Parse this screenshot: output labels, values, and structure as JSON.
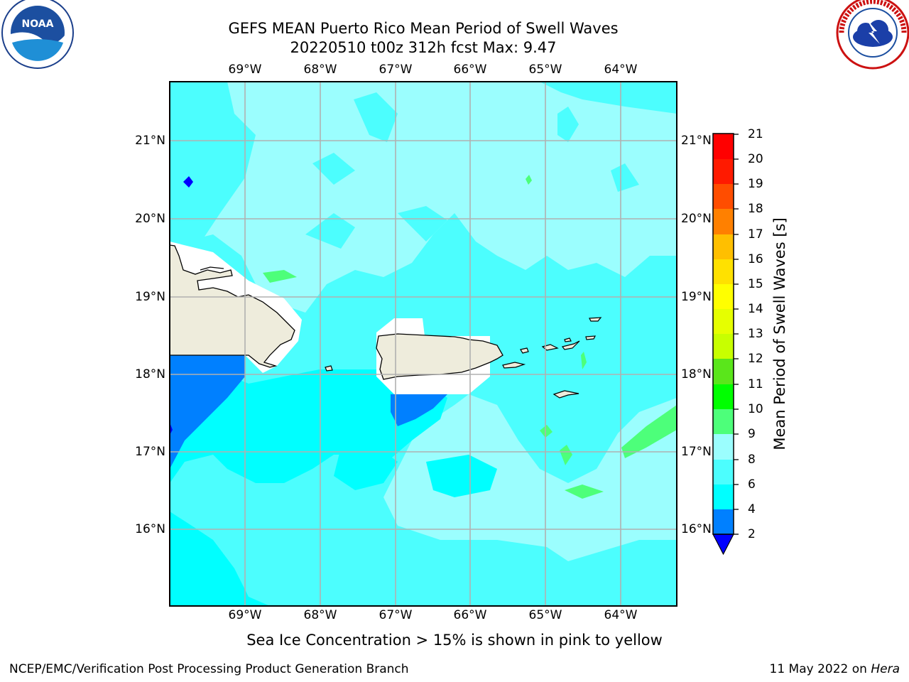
{
  "title": {
    "line1": "GEFS MEAN Puerto Rico Mean Period of Swell Waves",
    "line2": "20220510 t00z 312h fcst   Max: 9.47"
  },
  "logos": {
    "left": "noaa-logo",
    "right": "national-weather-service-logo",
    "left_text": "NOAA",
    "right_text": "NATIONAL WEATHER SERVICE"
  },
  "map": {
    "lon_labels": [
      "69°W",
      "68°W",
      "67°W",
      "66°W",
      "65°W",
      "64°W"
    ],
    "lat_labels": [
      "21°N",
      "20°N",
      "19°N",
      "18°N",
      "17°N",
      "16°N"
    ],
    "lon_values": [
      -69,
      -68,
      -67,
      -66,
      -65,
      -64
    ],
    "lat_values": [
      21,
      20,
      19,
      18,
      17,
      16
    ],
    "extent": {
      "lon": [
        -70,
        -63.25
      ],
      "lat": [
        15,
        21.75
      ]
    },
    "grid": true,
    "land_color": "#eeecdc",
    "masked_color": "#ffffff",
    "coastline_color": "#000000",
    "regions": [
      {
        "label": "Hispaniola (east)",
        "fill": "land"
      },
      {
        "label": "Puerto Rico",
        "fill": "land"
      },
      {
        "label": "Virgin Islands",
        "fill": "land"
      }
    ]
  },
  "colorbar": {
    "title": "Mean Period of Swell Waves [s]",
    "ticks": [
      "21",
      "20",
      "19",
      "18",
      "17",
      "16",
      "15",
      "14",
      "13",
      "12",
      "11",
      "10",
      "9",
      "8",
      "6",
      "4",
      "2"
    ],
    "levels": [
      2,
      4,
      6,
      8,
      9,
      10,
      11,
      12,
      13,
      14,
      15,
      16,
      17,
      18,
      19,
      20,
      21
    ],
    "colors": [
      "#0080ff",
      "#00ffff",
      "#4cfefe",
      "#9bfefe",
      "#4dff7a",
      "#33ea33",
      "#00ff00",
      "#5ae61b",
      "#a0e61b",
      "#c8ff00",
      "#e6ff00",
      "#ffff00",
      "#ffe100",
      "#ffbf00",
      "#ff8000",
      "#ff4d00",
      "#ff1a00",
      "#ff0000"
    ],
    "under_color": "#0000ff"
  },
  "note": "Sea Ice Concentration > 15% is shown in pink to yellow",
  "footer": {
    "left": "NCEP/EMC/Verification Post Processing Product Generation Branch",
    "right_date": "11 May 2022 on ",
    "right_host": "Hera"
  }
}
